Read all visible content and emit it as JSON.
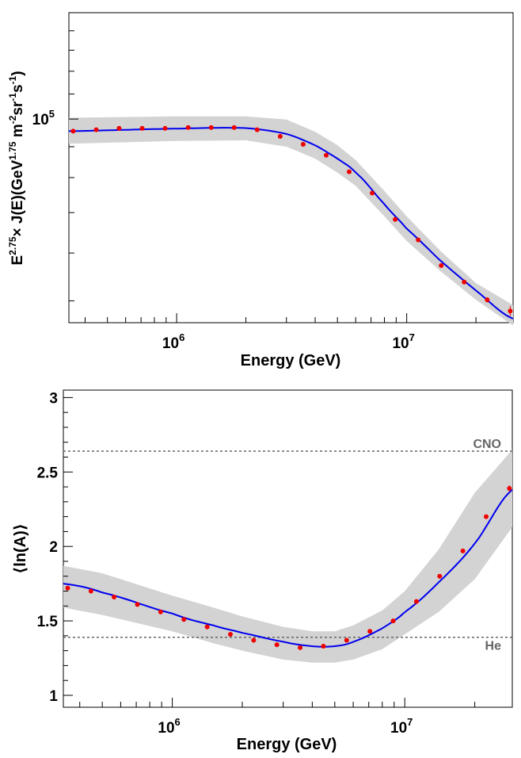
{
  "chart_data": [
    {
      "type": "line",
      "xlabel": "Energy (GeV)",
      "ylabel": "E^{2.75}× J(E)(GeV^{1.75}m^{-2}sr^{-1}s^{-1})",
      "ylabel_parts": {
        "e": "E",
        "exp1": "2.75",
        "times": "× J(E)(GeV",
        "exp2": "1.75",
        "m": " m",
        "exp3": "-2",
        "sr": "sr",
        "exp4": "-1",
        "s": "s",
        "exp5": "-1",
        "close": ")"
      },
      "xscale": "log",
      "yscale": "log",
      "xlim": [
        340000,
        29000000
      ],
      "ylim": [
        46000,
        150000
      ],
      "xticks": [
        {
          "value": 1000000,
          "base": "10",
          "exp": "6"
        },
        {
          "value": 10000000,
          "base": "10",
          "exp": "7"
        }
      ],
      "yticks": [
        {
          "value": 100000,
          "base": "10",
          "exp": "5"
        }
      ],
      "series": [
        {
          "style": "points",
          "x": [
            355000,
            447000,
            562000,
            708000,
            891000,
            1122000,
            1413000,
            1778000,
            2239000,
            2818000,
            3548000,
            4467000,
            5623000,
            7079000,
            8913000,
            11220000,
            14130000,
            17780000,
            22390000,
            28180000
          ],
          "y": [
            95500,
            96000,
            96500,
            96500,
            96500,
            96800,
            96800,
            96800,
            96000,
            93600,
            90800,
            87100,
            81800,
            75400,
            68200,
            63100,
            57200,
            53700,
            50200,
            48100
          ],
          "yerr": [
            0,
            0,
            0,
            0,
            0,
            0,
            0,
            0,
            0,
            0,
            0,
            0,
            0,
            0,
            0,
            0,
            0,
            0,
            500,
            900
          ]
        },
        {
          "style": "fit",
          "x": [
            340000,
            1000000,
            2000000,
            3000000,
            4000000,
            5000000,
            6000000,
            8000000,
            10000000,
            14000000,
            20000000,
            29000000
          ],
          "y": [
            95500,
            96400,
            96600,
            94500,
            90500,
            86000,
            81500,
            72300,
            65800,
            58300,
            52000,
            46700
          ]
        },
        {
          "style": "band",
          "x": [
            340000,
            1000000,
            2000000,
            3000000,
            4000000,
            5000000,
            6000000,
            8000000,
            10000000,
            14000000,
            20000000,
            29000000
          ],
          "upper": [
            100500,
            101000,
            101000,
            99800,
            95300,
            90500,
            85500,
            76000,
            69000,
            60500,
            53500,
            49200
          ],
          "lower": [
            91000,
            92000,
            92200,
            90000,
            86000,
            81500,
            77500,
            69000,
            62800,
            56000,
            50200,
            45500
          ]
        }
      ]
    },
    {
      "type": "line",
      "xlabel": "Energy (GeV)",
      "ylabel": "⟨ln(A)⟩",
      "xscale": "log",
      "xlim": [
        340000,
        29000000
      ],
      "ylim": [
        0.92,
        3.05
      ],
      "xticks": [
        {
          "value": 1000000,
          "base": "10",
          "exp": "6"
        },
        {
          "value": 10000000,
          "base": "10",
          "exp": "7"
        }
      ],
      "yticks": [
        {
          "value": 1,
          "label": "1"
        },
        {
          "value": 1.5,
          "label": "1.5"
        },
        {
          "value": 2,
          "label": "2"
        },
        {
          "value": 2.5,
          "label": "2.5"
        },
        {
          "value": 3,
          "label": "3"
        }
      ],
      "reference_lines": [
        {
          "label": "CNO",
          "y": 2.64
        },
        {
          "label": "He",
          "y": 1.39
        }
      ],
      "series": [
        {
          "style": "points",
          "x": [
            355000,
            447000,
            562000,
            708000,
            891000,
            1122000,
            1413000,
            1778000,
            2239000,
            2818000,
            3548000,
            4467000,
            5623000,
            7079000,
            8913000,
            11220000,
            14130000,
            17780000,
            22390000,
            28180000
          ],
          "y": [
            1.72,
            1.7,
            1.66,
            1.61,
            1.56,
            1.51,
            1.46,
            1.41,
            1.37,
            1.34,
            1.32,
            1.33,
            1.37,
            1.43,
            1.5,
            1.63,
            1.8,
            1.97,
            2.2,
            2.39
          ],
          "yerr": [
            0,
            0,
            0,
            0,
            0,
            0,
            0,
            0,
            0,
            0,
            0,
            0,
            0,
            0,
            0,
            0,
            0,
            0,
            0.015,
            0.02
          ]
        },
        {
          "style": "fit",
          "x": [
            340000,
            500000,
            1000000,
            1500000,
            2000000,
            3000000,
            4000000,
            5000000,
            6000000,
            8000000,
            10000000,
            14000000,
            20000000,
            29000000
          ],
          "y": [
            1.75,
            1.69,
            1.55,
            1.47,
            1.42,
            1.36,
            1.33,
            1.33,
            1.36,
            1.45,
            1.56,
            1.76,
            2.02,
            2.38
          ]
        },
        {
          "style": "band",
          "x": [
            340000,
            500000,
            1000000,
            1500000,
            2000000,
            3000000,
            4000000,
            5000000,
            6000000,
            8000000,
            10000000,
            14000000,
            20000000,
            29000000
          ],
          "upper": [
            1.87,
            1.82,
            1.67,
            1.59,
            1.53,
            1.46,
            1.43,
            1.43,
            1.47,
            1.57,
            1.7,
            1.98,
            2.36,
            2.65
          ],
          "lower": [
            1.59,
            1.54,
            1.43,
            1.35,
            1.3,
            1.24,
            1.22,
            1.22,
            1.24,
            1.31,
            1.41,
            1.56,
            1.78,
            2.13
          ]
        }
      ]
    }
  ]
}
